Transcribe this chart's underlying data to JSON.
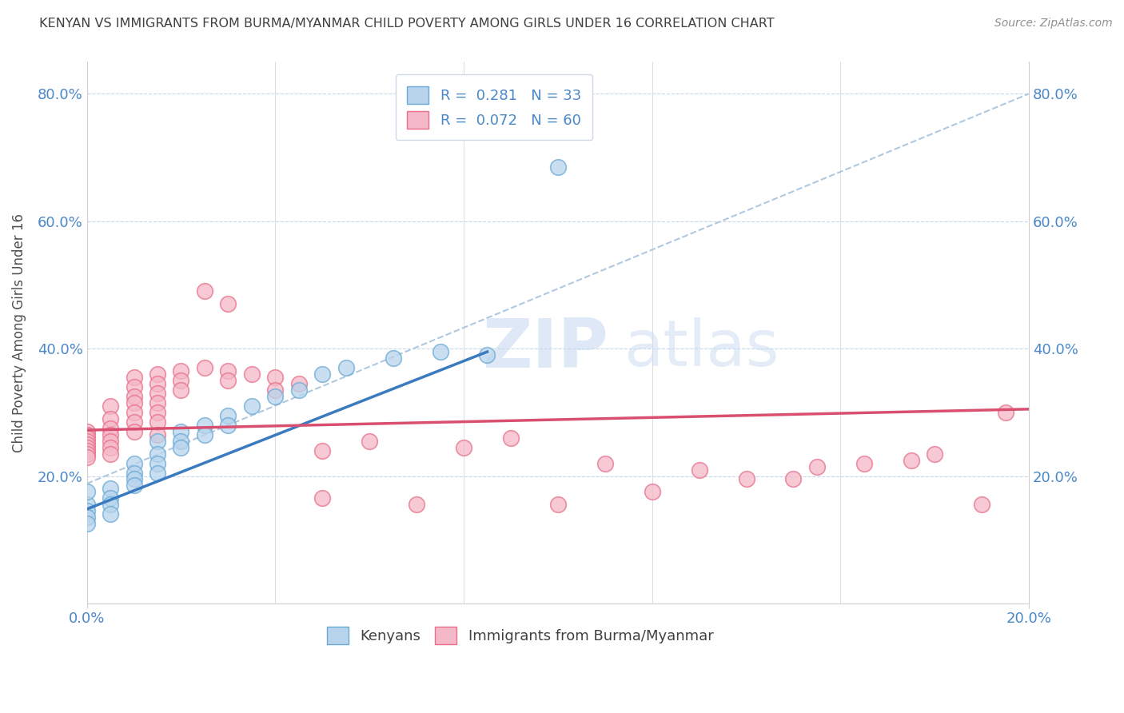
{
  "title": "KENYAN VS IMMIGRANTS FROM BURMA/MYANMAR CHILD POVERTY AMONG GIRLS UNDER 16 CORRELATION CHART",
  "source": "Source: ZipAtlas.com",
  "ylabel": "Child Poverty Among Girls Under 16",
  "xlim": [
    0.0,
    0.2
  ],
  "ylim": [
    0.0,
    0.85
  ],
  "yticks": [
    0.2,
    0.4,
    0.6,
    0.8
  ],
  "ytick_labels": [
    "20.0%",
    "40.0%",
    "60.0%",
    "80.0%"
  ],
  "xticks": [
    0.0,
    0.2
  ],
  "xtick_labels": [
    "0.0%",
    "20.0%"
  ],
  "legend_R_kenyan": "0.281",
  "legend_N_kenyan": "33",
  "legend_R_burma": "0.072",
  "legend_N_burma": "60",
  "kenyan_color": "#b8d4ed",
  "burma_color": "#f4b8c8",
  "kenyan_edge_color": "#6aaad4",
  "burma_edge_color": "#e8708a",
  "kenyan_line_color": "#3a7abf",
  "burma_line_color": "#d94f70",
  "dashed_line_color": "#b0c8e0",
  "kenyan_scatter": [
    [
      0.0,
      0.155
    ],
    [
      0.0,
      0.145
    ],
    [
      0.0,
      0.135
    ],
    [
      0.0,
      0.125
    ],
    [
      0.0,
      0.175
    ],
    [
      0.005,
      0.18
    ],
    [
      0.005,
      0.165
    ],
    [
      0.005,
      0.155
    ],
    [
      0.005,
      0.14
    ],
    [
      0.01,
      0.22
    ],
    [
      0.01,
      0.205
    ],
    [
      0.01,
      0.195
    ],
    [
      0.01,
      0.185
    ],
    [
      0.015,
      0.255
    ],
    [
      0.015,
      0.235
    ],
    [
      0.015,
      0.22
    ],
    [
      0.015,
      0.205
    ],
    [
      0.02,
      0.27
    ],
    [
      0.02,
      0.255
    ],
    [
      0.02,
      0.245
    ],
    [
      0.025,
      0.28
    ],
    [
      0.025,
      0.265
    ],
    [
      0.03,
      0.295
    ],
    [
      0.03,
      0.28
    ],
    [
      0.035,
      0.31
    ],
    [
      0.04,
      0.325
    ],
    [
      0.045,
      0.335
    ],
    [
      0.05,
      0.36
    ],
    [
      0.055,
      0.37
    ],
    [
      0.065,
      0.385
    ],
    [
      0.075,
      0.395
    ],
    [
      0.085,
      0.39
    ],
    [
      0.1,
      0.685
    ]
  ],
  "burma_scatter": [
    [
      0.0,
      0.27
    ],
    [
      0.0,
      0.265
    ],
    [
      0.0,
      0.26
    ],
    [
      0.0,
      0.255
    ],
    [
      0.0,
      0.25
    ],
    [
      0.0,
      0.245
    ],
    [
      0.0,
      0.24
    ],
    [
      0.0,
      0.235
    ],
    [
      0.0,
      0.23
    ],
    [
      0.005,
      0.31
    ],
    [
      0.005,
      0.29
    ],
    [
      0.005,
      0.275
    ],
    [
      0.005,
      0.265
    ],
    [
      0.005,
      0.255
    ],
    [
      0.005,
      0.245
    ],
    [
      0.005,
      0.235
    ],
    [
      0.01,
      0.355
    ],
    [
      0.01,
      0.34
    ],
    [
      0.01,
      0.325
    ],
    [
      0.01,
      0.315
    ],
    [
      0.01,
      0.3
    ],
    [
      0.01,
      0.285
    ],
    [
      0.01,
      0.27
    ],
    [
      0.015,
      0.36
    ],
    [
      0.015,
      0.345
    ],
    [
      0.015,
      0.33
    ],
    [
      0.015,
      0.315
    ],
    [
      0.015,
      0.3
    ],
    [
      0.015,
      0.285
    ],
    [
      0.015,
      0.265
    ],
    [
      0.02,
      0.365
    ],
    [
      0.02,
      0.35
    ],
    [
      0.02,
      0.335
    ],
    [
      0.025,
      0.37
    ],
    [
      0.03,
      0.365
    ],
    [
      0.03,
      0.35
    ],
    [
      0.035,
      0.36
    ],
    [
      0.04,
      0.355
    ],
    [
      0.04,
      0.335
    ],
    [
      0.045,
      0.345
    ],
    [
      0.05,
      0.24
    ],
    [
      0.05,
      0.165
    ],
    [
      0.06,
      0.255
    ],
    [
      0.07,
      0.155
    ],
    [
      0.08,
      0.245
    ],
    [
      0.09,
      0.26
    ],
    [
      0.1,
      0.155
    ],
    [
      0.11,
      0.22
    ],
    [
      0.12,
      0.175
    ],
    [
      0.13,
      0.21
    ],
    [
      0.14,
      0.195
    ],
    [
      0.15,
      0.195
    ],
    [
      0.155,
      0.215
    ],
    [
      0.165,
      0.22
    ],
    [
      0.175,
      0.225
    ],
    [
      0.18,
      0.235
    ],
    [
      0.19,
      0.155
    ],
    [
      0.195,
      0.3
    ],
    [
      0.025,
      0.49
    ],
    [
      0.03,
      0.47
    ]
  ],
  "kenyan_trendline": [
    [
      0.0,
      0.148
    ],
    [
      0.085,
      0.395
    ]
  ],
  "burma_trendline": [
    [
      0.0,
      0.272
    ],
    [
      0.2,
      0.305
    ]
  ],
  "dashed_trendline": [
    [
      0.0,
      0.188
    ],
    [
      0.2,
      0.8
    ]
  ],
  "background_color": "#ffffff",
  "plot_bg_color": "#ffffff",
  "grid_color": "#c8d8ec",
  "title_color": "#404040",
  "axis_color": "#4a88c8",
  "label_color": "#505050"
}
